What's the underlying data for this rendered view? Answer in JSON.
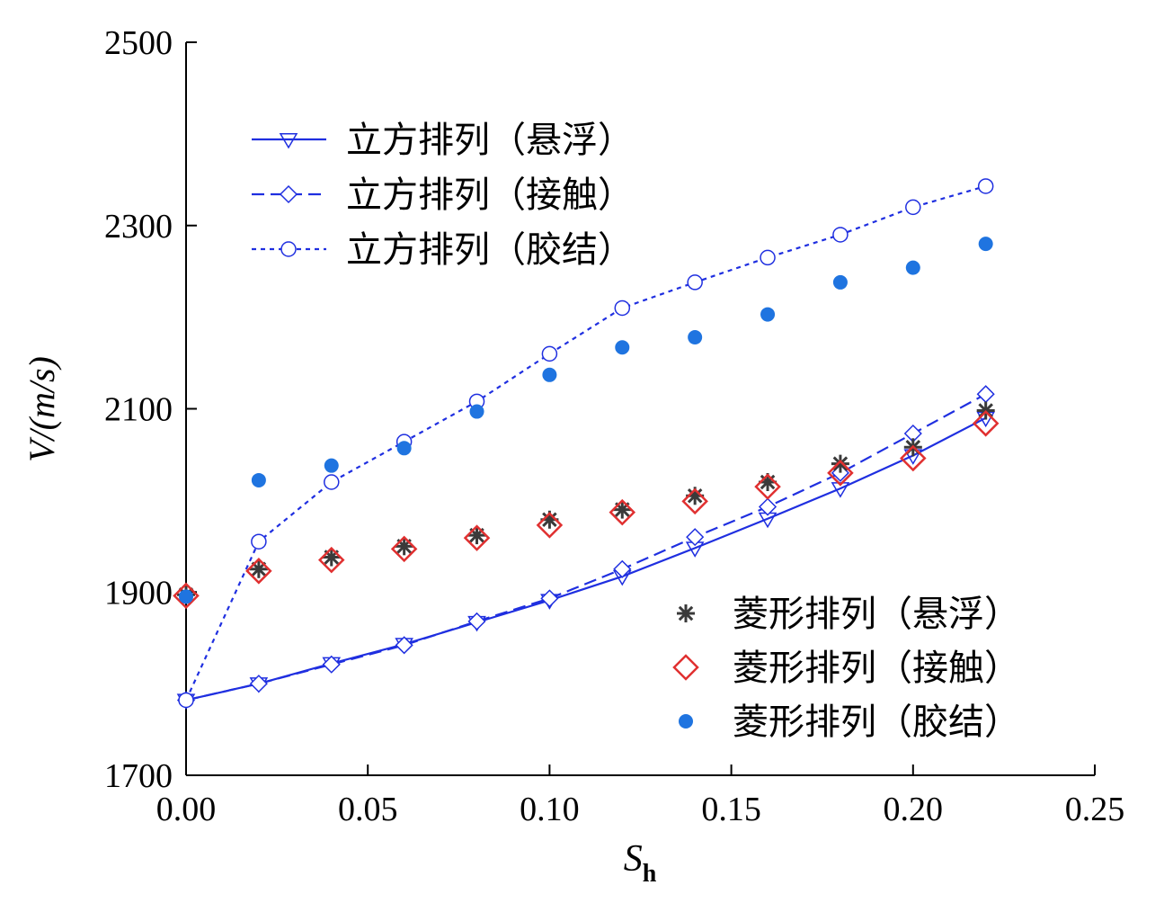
{
  "chart_data": {
    "type": "scatter",
    "title": "",
    "xlabel": "S",
    "xlabel_sub": "h",
    "ylabel": "V/(m/s)",
    "xlim": [
      0,
      0.25
    ],
    "ylim": [
      1700,
      2500
    ],
    "x_ticks": [
      "0.00",
      "0.05",
      "0.10",
      "0.15",
      "0.20",
      "0.25"
    ],
    "y_ticks": [
      "1700",
      "1900",
      "2100",
      "2300",
      "2500"
    ],
    "grid": false,
    "legend_placement": [
      "top-left",
      "bottom-right"
    ],
    "series": [
      {
        "name": "立方排列（悬浮）",
        "style": "solid-line",
        "marker": "triangle-down-open",
        "color": "#1f2fe0",
        "x": [
          0,
          0.02,
          0.04,
          0.06,
          0.08,
          0.1,
          0.12,
          0.14,
          0.16,
          0.18,
          0.2,
          0.22
        ],
        "y": [
          1782,
          1800,
          1822,
          1843,
          1867,
          1891,
          1917,
          1948,
          1980,
          2013,
          2049,
          2090
        ]
      },
      {
        "name": "立方排列（接触）",
        "style": "dashed-line",
        "marker": "diamond-open",
        "color": "#1f2fe0",
        "x": [
          0,
          0.02,
          0.04,
          0.06,
          0.08,
          0.1,
          0.12,
          0.14,
          0.16,
          0.18,
          0.2,
          0.22
        ],
        "y": [
          1782,
          1800,
          1821,
          1842,
          1868,
          1893,
          1925,
          1960,
          1993,
          2030,
          2073,
          2116
        ]
      },
      {
        "name": "立方排列（胶结）",
        "style": "dotted-line",
        "marker": "circle-open",
        "color": "#1f2fe0",
        "x": [
          0,
          0.02,
          0.04,
          0.06,
          0.08,
          0.1,
          0.12,
          0.14,
          0.16,
          0.18,
          0.2,
          0.22
        ],
        "y": [
          1782,
          1955,
          2020,
          2064,
          2108,
          2160,
          2210,
          2238,
          2265,
          2290,
          2320,
          2343
        ]
      },
      {
        "name": "菱形排列（悬浮）",
        "style": "markers",
        "marker": "asterisk",
        "color": "#3a3a3a",
        "x": [
          0,
          0.02,
          0.04,
          0.06,
          0.08,
          0.1,
          0.12,
          0.14,
          0.16,
          0.18,
          0.2,
          0.22
        ],
        "y": [
          1897,
          1925,
          1938,
          1950,
          1962,
          1979,
          1990,
          2005,
          2020,
          2040,
          2058,
          2098
        ]
      },
      {
        "name": "菱形排列（接触）",
        "style": "markers",
        "marker": "diamond-open-large",
        "color": "#e03030",
        "x": [
          0,
          0.02,
          0.04,
          0.06,
          0.08,
          0.1,
          0.12,
          0.14,
          0.16,
          0.18,
          0.2,
          0.22
        ],
        "y": [
          1896,
          1923,
          1935,
          1947,
          1959,
          1973,
          1987,
          1999,
          2015,
          2030,
          2046,
          2084
        ]
      },
      {
        "name": "菱形排列（胶结）",
        "style": "markers",
        "marker": "circle-filled",
        "color": "#1f74e0",
        "x": [
          0,
          0.02,
          0.04,
          0.06,
          0.08,
          0.1,
          0.12,
          0.14,
          0.16,
          0.18,
          0.2,
          0.22
        ],
        "y": [
          1895,
          2022,
          2038,
          2057,
          2097,
          2137,
          2167,
          2178,
          2203,
          2238,
          2254,
          2280
        ]
      }
    ]
  }
}
